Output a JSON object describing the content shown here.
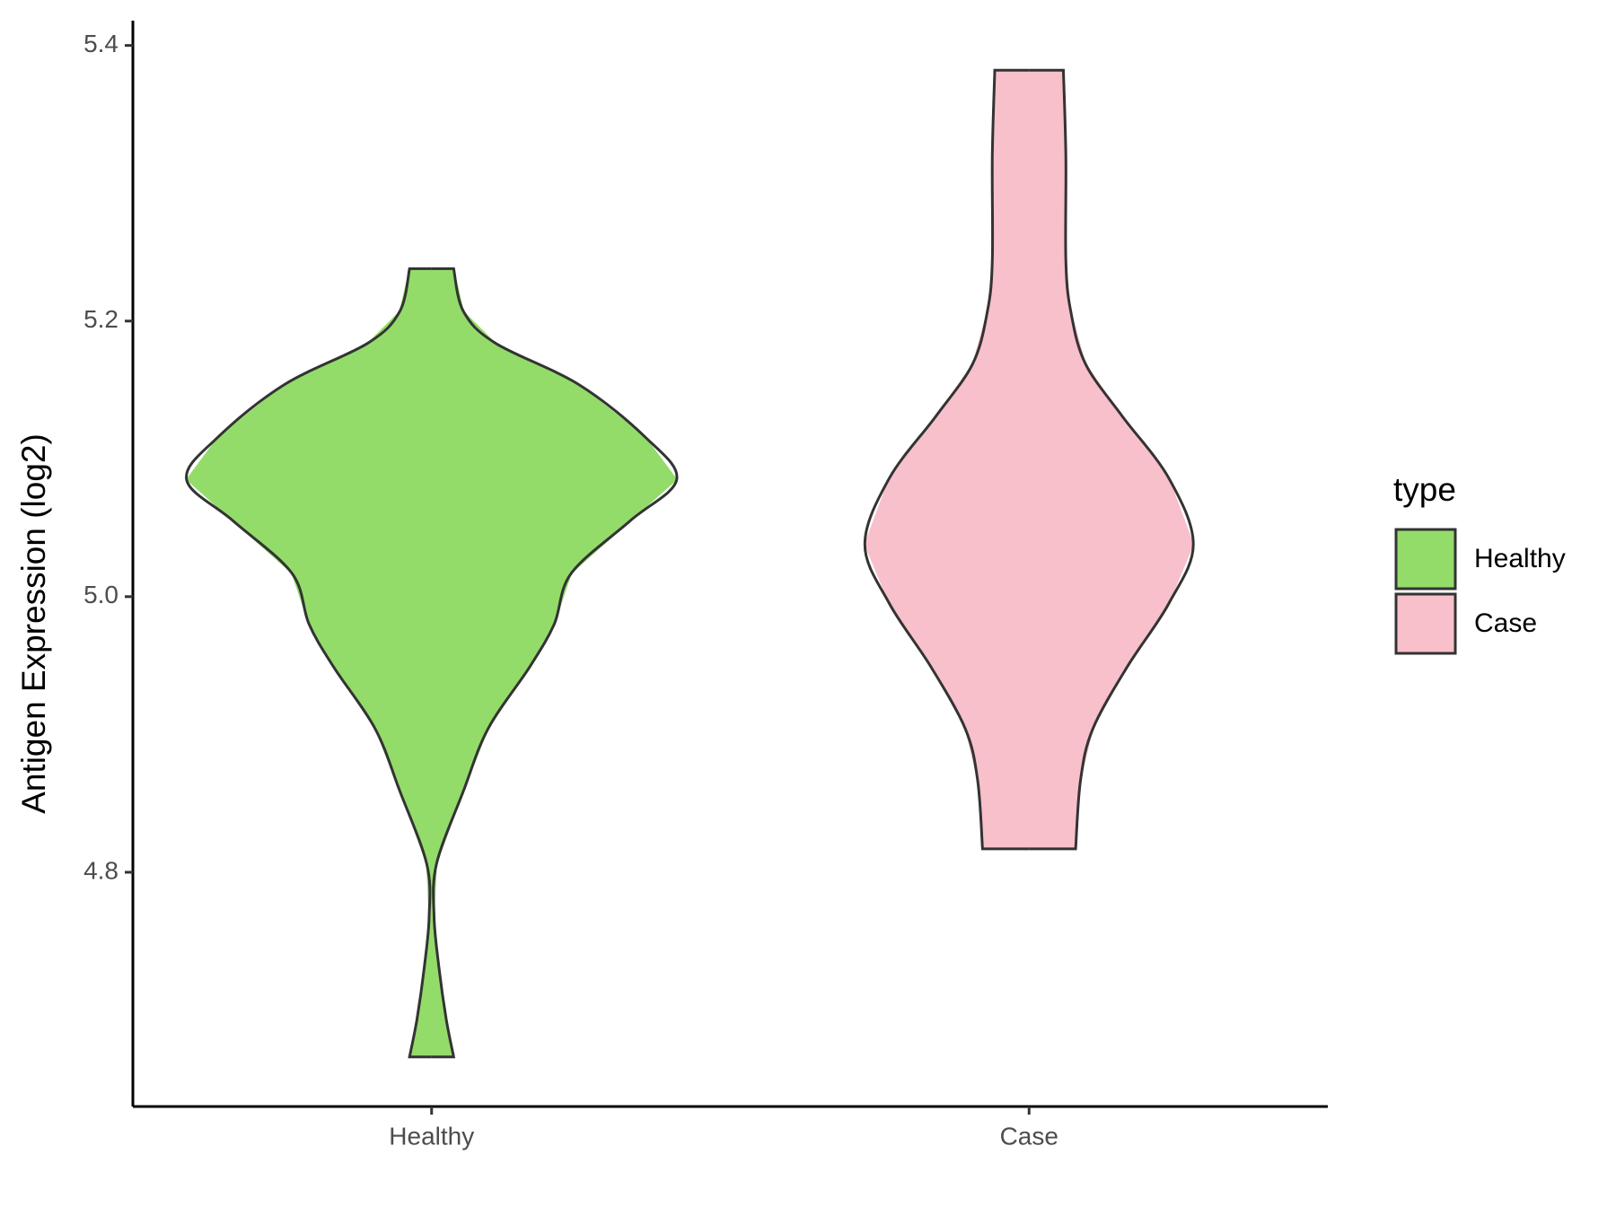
{
  "chart_data": {
    "type": "violin",
    "y_label": "Antigen Expression (log2)",
    "categories": [
      "Healthy",
      "Case"
    ],
    "legend_title": "type",
    "legend_position": "right",
    "series": [
      {
        "name": "Healthy",
        "color": "#93dc6a",
        "y": [
          5.238,
          5.207,
          5.184,
          5.154,
          5.116,
          5.085,
          5.055,
          5.017,
          4.98,
          4.949,
          4.904,
          4.859,
          4.806,
          4.768,
          4.731,
          4.693,
          4.666
        ],
        "density": [
          0.09,
          0.13,
          0.26,
          0.6,
          0.87,
          1.0,
          0.81,
          0.57,
          0.5,
          0.4,
          0.23,
          0.13,
          0.02,
          0.01,
          0.03,
          0.06,
          0.09
        ]
      },
      {
        "name": "Case",
        "color": "#f7c0cb",
        "y": [
          5.382,
          5.32,
          5.244,
          5.207,
          5.169,
          5.131,
          5.086,
          5.038,
          4.995,
          4.949,
          4.904,
          4.867,
          4.817
        ],
        "density": [
          0.14,
          0.15,
          0.15,
          0.17,
          0.23,
          0.38,
          0.57,
          0.67,
          0.57,
          0.4,
          0.26,
          0.21,
          0.19
        ]
      }
    ],
    "ylim": [
      4.63,
      5.418
    ],
    "yticks": [
      4.8,
      {
        "value": 5,
        "label": "5.0"
      },
      5.2,
      5.4
    ],
    "grid": false
  }
}
